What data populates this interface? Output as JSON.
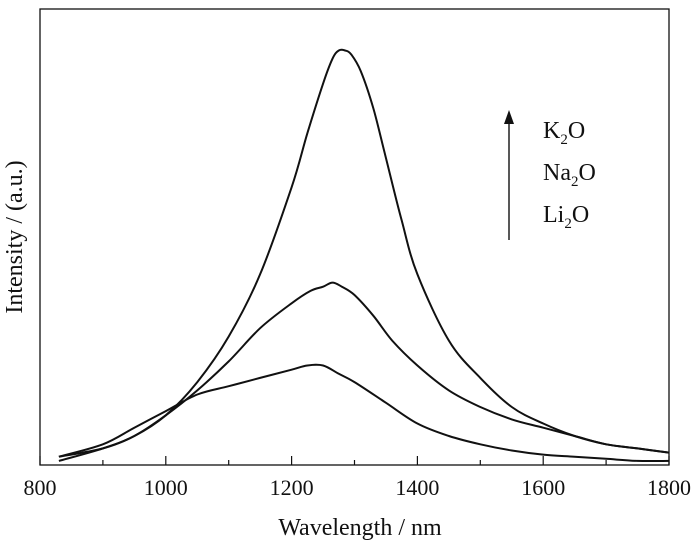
{
  "chart_data": {
    "type": "line",
    "title": "",
    "xlabel": "Wavelength / nm",
    "ylabel": "Intensity / (a.u.)",
    "xlim": [
      800,
      1800
    ],
    "ylim": [
      0,
      1.1
    ],
    "x_ticks": [
      800,
      1000,
      1200,
      1400,
      1600,
      1800
    ],
    "y_ticks_shown": false,
    "grid": false,
    "series": [
      {
        "name": "K2O",
        "x": [
          830,
          900,
          950,
          1000,
          1050,
          1100,
          1150,
          1200,
          1225,
          1250,
          1265,
          1275,
          1285,
          1295,
          1310,
          1330,
          1350,
          1375,
          1400,
          1450,
          1500,
          1550,
          1600,
          1650,
          1700,
          1750,
          1800
        ],
        "y": [
          0.02,
          0.04,
          0.07,
          0.12,
          0.2,
          0.31,
          0.46,
          0.67,
          0.8,
          0.92,
          0.98,
          1.0,
          1.0,
          0.99,
          0.95,
          0.86,
          0.74,
          0.59,
          0.46,
          0.3,
          0.21,
          0.14,
          0.1,
          0.07,
          0.05,
          0.04,
          0.03
        ]
      },
      {
        "name": "Na2O",
        "x": [
          830,
          900,
          950,
          1000,
          1050,
          1100,
          1150,
          1200,
          1230,
          1250,
          1265,
          1280,
          1300,
          1330,
          1360,
          1400,
          1450,
          1500,
          1550,
          1600,
          1650,
          1700,
          1750,
          1800
        ],
        "y": [
          0.01,
          0.04,
          0.07,
          0.12,
          0.18,
          0.25,
          0.33,
          0.39,
          0.42,
          0.43,
          0.44,
          0.43,
          0.41,
          0.36,
          0.3,
          0.24,
          0.18,
          0.14,
          0.11,
          0.09,
          0.07,
          0.05,
          0.04,
          0.03
        ]
      },
      {
        "name": "Li2O",
        "x": [
          830,
          900,
          950,
          1000,
          1050,
          1100,
          1150,
          1200,
          1225,
          1250,
          1275,
          1300,
          1350,
          1400,
          1450,
          1500,
          1550,
          1600,
          1650,
          1700,
          1750,
          1800
        ],
        "y": [
          0.02,
          0.05,
          0.09,
          0.13,
          0.17,
          0.19,
          0.21,
          0.23,
          0.24,
          0.24,
          0.22,
          0.2,
          0.15,
          0.1,
          0.07,
          0.05,
          0.035,
          0.025,
          0.02,
          0.015,
          0.01,
          0.01
        ]
      }
    ],
    "legend": {
      "position": "top-right",
      "arrow": "up",
      "entries": [
        {
          "base": "K",
          "sub": "2",
          "tail": "O"
        },
        {
          "base": "Na",
          "sub": "2",
          "tail": "O"
        },
        {
          "base": "Li",
          "sub": "2",
          "tail": "O"
        }
      ]
    }
  }
}
